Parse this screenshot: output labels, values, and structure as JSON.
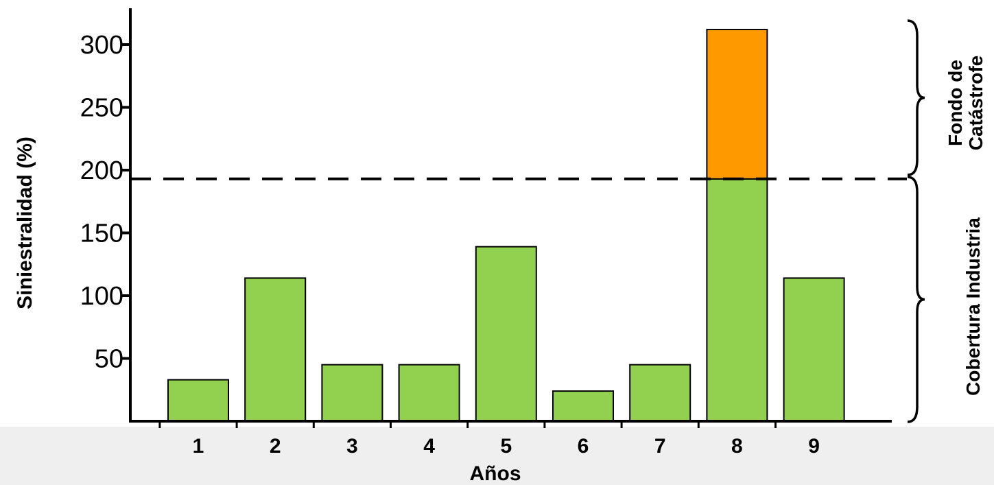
{
  "chart_data": {
    "type": "bar",
    "stacked": true,
    "xlabel": "Años",
    "ylabel": "Siniestralidad (%)",
    "categories": [
      "1",
      "2",
      "3",
      "4",
      "5",
      "6",
      "7",
      "8",
      "9"
    ],
    "series": [
      {
        "values": [
          33,
          114,
          45,
          45,
          139,
          24,
          45,
          193,
          114
        ],
        "color": "#92d050"
      },
      {
        "values": [
          0,
          0,
          0,
          0,
          0,
          0,
          0,
          119,
          0
        ],
        "color": "#ff9900"
      }
    ],
    "yticks": [
      50,
      100,
      150,
      200,
      250,
      300
    ],
    "ylim": [
      0,
      330
    ],
    "threshold": 193,
    "threshold_style": "dashed",
    "grid": false,
    "brackets": [
      {
        "label_lines": [
          "Fondo de",
          "Catástrofe"
        ],
        "range": [
          193,
          330
        ]
      },
      {
        "label_lines": [
          "Cobertura Industria"
        ],
        "range": [
          0,
          193
        ]
      }
    ]
  }
}
